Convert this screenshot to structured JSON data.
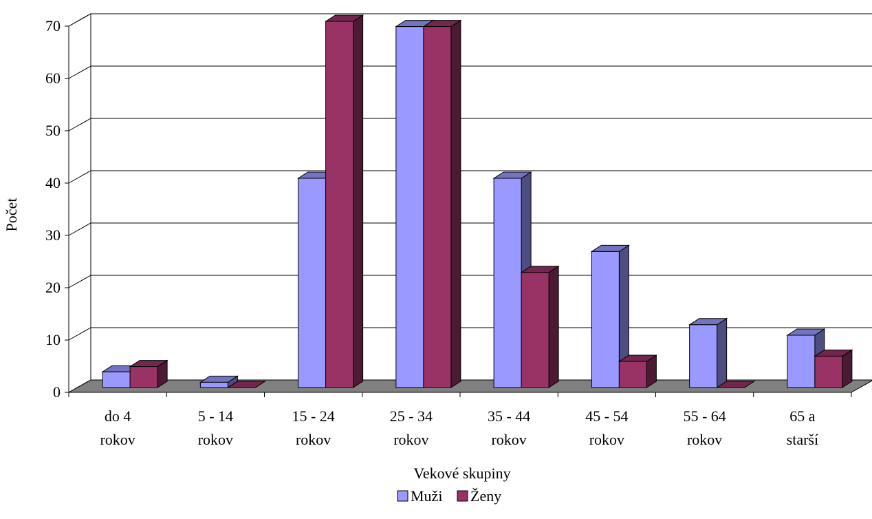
{
  "chart_data": {
    "type": "bar",
    "title": "",
    "xlabel": "Vekové skupiny",
    "ylabel": "Počet",
    "ylim": [
      0,
      70
    ],
    "yticks": [
      "0",
      "10",
      "20",
      "30",
      "40",
      "50",
      "60",
      "70"
    ],
    "grid": true,
    "three_d": true,
    "legend_position": "bottom",
    "categories": [
      [
        "do 4",
        "rokov"
      ],
      [
        "5 - 14",
        "rokov"
      ],
      [
        "15 - 24",
        "rokov"
      ],
      [
        "25 - 34",
        "rokov"
      ],
      [
        "35 - 44",
        "rokov"
      ],
      [
        "45 - 54",
        "rokov"
      ],
      [
        "55 - 64",
        "rokov"
      ],
      [
        "65 a",
        "starší"
      ]
    ],
    "series": [
      {
        "name": "Muži",
        "values": [
          3,
          1,
          40,
          69,
          40,
          26,
          12,
          10
        ],
        "color": "#9999ff"
      },
      {
        "name": "Ženy",
        "values": [
          4,
          0,
          70,
          69,
          22,
          5,
          0,
          6
        ],
        "color": "#993366"
      }
    ],
    "floor_color": "#808080"
  }
}
